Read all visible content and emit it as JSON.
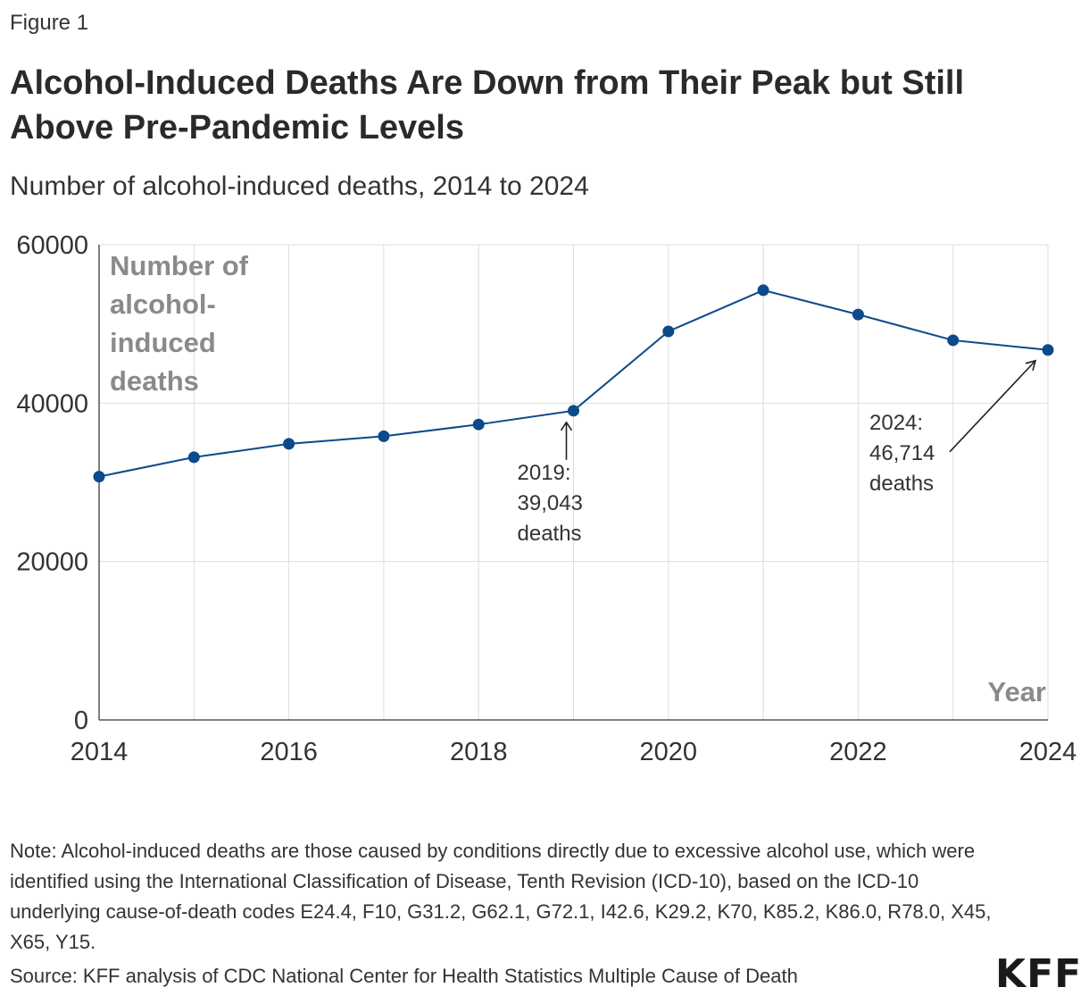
{
  "figure_label": "Figure 1",
  "title": "Alcohol-Induced Deaths Are Down from Their Peak but Still Above Pre-Pandemic Levels",
  "subtitle": "Number of alcohol-induced deaths, 2014 to 2024",
  "note": "Note: Alcohol-induced deaths are those caused by conditions directly due to excessive alcohol use, which were identified using the International Classification of Disease, Tenth Revision (ICD-10), based on the ICD-10 underlying cause-of-death codes E24.4, F10, G31.2, G62.1, G72.1, I42.6, K29.2, K70, K85.2, K86.0, R78.0, X45, X65, Y15.",
  "source": "Source: KFF analysis of CDC National Center for Health Statistics Multiple Cause of Death",
  "logo": "KFF",
  "colors": {
    "series": "#0b4a8b",
    "gridline": "#dddddd",
    "axis": "#555555",
    "axis_title": "#8a8a8a"
  },
  "chart_data": {
    "type": "line",
    "xlabel": "Year",
    "ylabel": "Number of alcohol-induced deaths",
    "ylabel_lines": [
      "Number of",
      "alcohol-",
      "induced",
      "deaths"
    ],
    "xlim": [
      2014,
      2024
    ],
    "ylim": [
      0,
      60000
    ],
    "x_ticks": [
      2014,
      2016,
      2018,
      2020,
      2022,
      2024
    ],
    "y_ticks": [
      0,
      20000,
      40000,
      60000
    ],
    "grid": true,
    "x": [
      2014,
      2015,
      2016,
      2017,
      2018,
      2019,
      2020,
      2021,
      2022,
      2023,
      2024
    ],
    "series": [
      {
        "values": [
          30722,
          33171,
          34865,
          35823,
          37309,
          39043,
          49061,
          54258,
          51191,
          47938,
          46714
        ]
      }
    ],
    "annotations": [
      {
        "x": 2019,
        "lines": [
          "2019:",
          "39,043",
          "deaths"
        ]
      },
      {
        "x": 2024,
        "lines": [
          "2024:",
          "46,714",
          "deaths"
        ]
      }
    ]
  }
}
